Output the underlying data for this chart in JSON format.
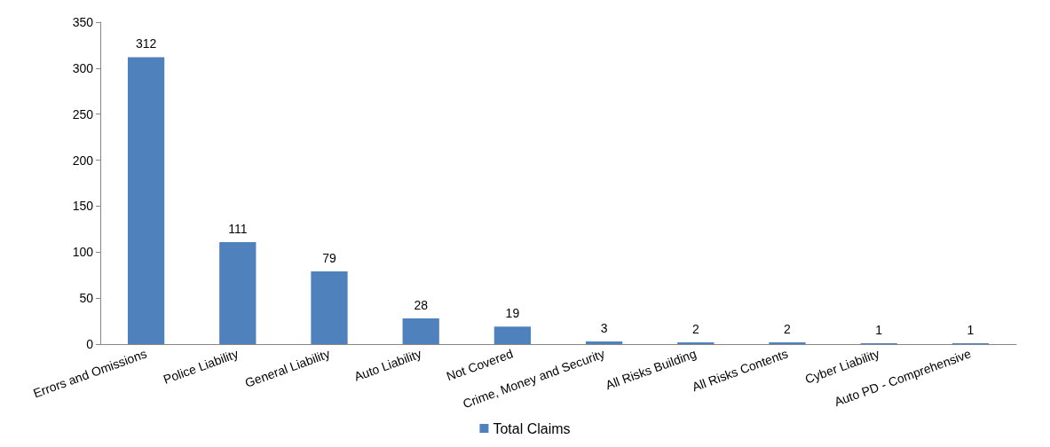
{
  "chart_data": {
    "type": "bar",
    "categories": [
      "Errors and Omissions",
      "Police Liability",
      "General Liability",
      "Auto Liability",
      "Not Covered",
      "Crime, Money and Security",
      "All Risks Building",
      "All Risks Contents",
      "Cyber Liability",
      "Auto PD - Comprehensive"
    ],
    "series": [
      {
        "name": "Total Claims",
        "color": "#4f81bd",
        "values": [
          312,
          111,
          79,
          28,
          19,
          3,
          2,
          2,
          1,
          1
        ]
      }
    ],
    "ylim": [
      0,
      350
    ],
    "yticks": [
      0,
      50,
      100,
      150,
      200,
      250,
      300,
      350
    ],
    "grid": false,
    "legend": "bottom",
    "data_labels": true
  }
}
